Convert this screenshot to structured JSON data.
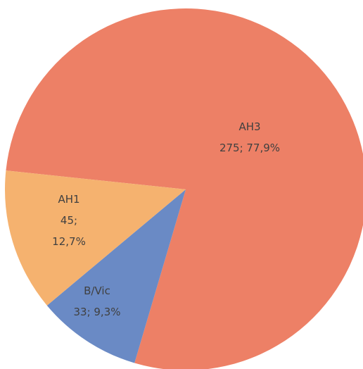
{
  "chart_data": {
    "type": "pie",
    "categories": [
      "AH3",
      "B/Vic",
      "AH1"
    ],
    "values": [
      275,
      33,
      45
    ],
    "value_labels": [
      "275; 77,9%",
      "33; 9,3%",
      "45; 12,7%"
    ],
    "colors": [
      "#ed8066",
      "#6a8ac5",
      "#f5b26f"
    ]
  }
}
